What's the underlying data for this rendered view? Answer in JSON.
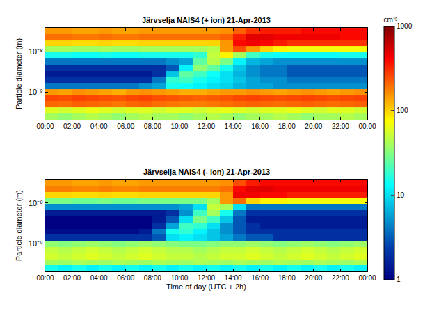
{
  "chart_data": [
    {
      "type": "heatmap",
      "title": "Järvselja NAIS4 (+ ion) 21-Apr-2013",
      "ylabel": "Particle diameter (m)",
      "log": "y",
      "x": [
        0.5,
        1.5,
        2.5,
        3.5,
        4.5,
        5.5,
        6.5,
        7.5,
        8.5,
        9.5,
        10.5,
        11.5,
        12.5,
        13.5,
        14.5,
        15.5,
        16.5,
        17.5,
        18.5,
        19.5,
        20.5,
        21.5,
        22.5,
        23.5
      ],
      "xlim": [
        0,
        24
      ],
      "xticks": [
        {
          "value": 0,
          "label": "00:00"
        },
        {
          "value": 2,
          "label": "02:00"
        },
        {
          "value": 4,
          "label": "04:00"
        },
        {
          "value": 6,
          "label": "06:00"
        },
        {
          "value": 8,
          "label": "08:00"
        },
        {
          "value": 10,
          "label": "10:00"
        },
        {
          "value": 12,
          "label": "12:00"
        },
        {
          "value": 14,
          "label": "14:00"
        },
        {
          "value": 16,
          "label": "16:00"
        },
        {
          "value": 18,
          "label": "18:00"
        },
        {
          "value": 20,
          "label": "20:00"
        },
        {
          "value": 22,
          "label": "22:00"
        },
        {
          "value": 24,
          "label": "00:00"
        }
      ],
      "y_bins": [
        2.11e-10,
        2.99e-10,
        4.22e-10,
        5.96e-10,
        8.41e-10,
        1.19e-09,
        1.68e-09,
        2.37e-09,
        3.35e-09,
        4.73e-09,
        6.68e-09,
        9.44e-09,
        1.33e-08,
        1.88e-08,
        2.66e-08,
        3.76e-08
      ],
      "ylim": [
        2.11e-10,
        3.76e-08
      ],
      "yticks": [
        {
          "value": 1e-09,
          "label": "10⁻⁹"
        },
        {
          "value": 1e-08,
          "label": "10⁻⁸"
        }
      ],
      "z": [
        [
          40,
          35,
          40,
          45,
          40,
          35,
          40,
          45,
          40,
          40,
          35,
          40,
          45,
          40,
          35,
          40,
          40,
          45,
          40,
          35,
          40,
          40,
          45,
          40
        ],
        [
          60,
          55,
          60,
          65,
          60,
          55,
          60,
          60,
          55,
          60,
          60,
          55,
          60,
          65,
          60,
          55,
          60,
          60,
          65,
          60,
          55,
          60,
          60,
          55
        ],
        [
          210,
          200,
          220,
          210,
          200,
          190,
          210,
          220,
          200,
          190,
          180,
          180,
          190,
          200,
          210,
          220,
          210,
          200,
          210,
          220,
          210,
          200,
          210,
          220
        ],
        [
          260,
          250,
          270,
          260,
          250,
          240,
          260,
          270,
          250,
          240,
          230,
          220,
          230,
          240,
          260,
          270,
          260,
          250,
          260,
          270,
          260,
          250,
          260,
          270
        ],
        [
          150,
          140,
          160,
          150,
          140,
          130,
          150,
          160,
          150,
          140,
          130,
          130,
          140,
          150,
          150,
          160,
          150,
          140,
          150,
          160,
          150,
          140,
          150,
          160
        ],
        [
          4,
          4,
          4,
          4,
          4,
          4,
          4,
          5,
          6,
          15,
          14,
          12,
          10,
          9,
          7,
          6,
          6,
          5,
          5,
          5,
          5,
          5,
          5,
          5
        ],
        [
          2,
          2,
          2,
          2,
          2,
          2,
          2,
          2,
          4,
          18,
          20,
          15,
          12,
          10,
          8,
          6,
          5,
          5,
          4,
          4,
          4,
          4,
          4,
          4
        ],
        [
          1.5,
          1.5,
          1.5,
          1.5,
          1.5,
          1.5,
          1.5,
          1.5,
          2,
          8,
          25,
          20,
          14,
          10,
          7,
          5,
          4,
          4,
          3,
          3,
          3,
          3,
          3,
          3
        ],
        [
          2,
          2,
          2,
          2,
          2,
          2,
          2,
          2,
          2,
          3,
          12,
          35,
          25,
          15,
          8,
          5,
          4,
          4,
          3,
          3,
          3,
          3,
          3,
          3
        ],
        [
          4,
          4,
          4,
          4,
          4,
          4,
          4,
          4,
          4,
          5,
          6,
          25,
          45,
          30,
          12,
          7,
          6,
          5,
          5,
          5,
          5,
          5,
          5,
          5
        ],
        [
          15,
          15,
          14,
          14,
          15,
          14,
          14,
          15,
          15,
          15,
          15,
          18,
          50,
          80,
          40,
          20,
          15,
          14,
          14,
          14,
          14,
          14,
          15,
          15
        ],
        [
          40,
          40,
          38,
          38,
          40,
          38,
          38,
          40,
          40,
          40,
          40,
          40,
          45,
          150,
          250,
          150,
          100,
          80,
          70,
          70,
          70,
          70,
          70,
          70
        ],
        [
          100,
          100,
          95,
          95,
          100,
          95,
          95,
          100,
          100,
          100,
          100,
          100,
          100,
          150,
          400,
          450,
          400,
          350,
          300,
          300,
          300,
          300,
          300,
          300
        ],
        [
          200,
          200,
          190,
          190,
          200,
          190,
          190,
          200,
          200,
          200,
          200,
          200,
          200,
          220,
          350,
          500,
          500,
          450,
          450,
          450,
          450,
          450,
          400,
          400
        ],
        [
          150,
          150,
          140,
          140,
          150,
          140,
          140,
          150,
          150,
          150,
          150,
          150,
          150,
          160,
          220,
          300,
          350,
          350,
          350,
          400,
          400,
          400,
          400,
          400
        ]
      ],
      "colorbar": {
        "label": "cm⁻³",
        "range": [
          1,
          1000
        ],
        "ticks": [
          1,
          10,
          100,
          1000
        ],
        "log": true
      }
    },
    {
      "type": "heatmap",
      "title": "Järvselja NAIS4 (- ion) 21-Apr-2013",
      "ylabel": "Particle diameter (m)",
      "xlabel": "Time of day (UTC + 2h)",
      "log": "y",
      "x": [
        0.5,
        1.5,
        2.5,
        3.5,
        4.5,
        5.5,
        6.5,
        7.5,
        8.5,
        9.5,
        10.5,
        11.5,
        12.5,
        13.5,
        14.5,
        15.5,
        16.5,
        17.5,
        18.5,
        19.5,
        20.5,
        21.5,
        22.5,
        23.5
      ],
      "xlim": [
        0,
        24
      ],
      "xticks": [
        {
          "value": 0,
          "label": "00:00"
        },
        {
          "value": 2,
          "label": "02:00"
        },
        {
          "value": 4,
          "label": "04:00"
        },
        {
          "value": 6,
          "label": "06:00"
        },
        {
          "value": 8,
          "label": "08:00"
        },
        {
          "value": 10,
          "label": "10:00"
        },
        {
          "value": 12,
          "label": "12:00"
        },
        {
          "value": 14,
          "label": "14:00"
        },
        {
          "value": 16,
          "label": "16:00"
        },
        {
          "value": 18,
          "label": "18:00"
        },
        {
          "value": 20,
          "label": "20:00"
        },
        {
          "value": 22,
          "label": "22:00"
        },
        {
          "value": 24,
          "label": "00:00"
        }
      ],
      "y_bins": [
        2.11e-10,
        2.99e-10,
        4.22e-10,
        5.96e-10,
        8.41e-10,
        1.19e-09,
        1.68e-09,
        2.37e-09,
        3.35e-09,
        4.73e-09,
        6.68e-09,
        9.44e-09,
        1.33e-08,
        1.88e-08,
        2.66e-08,
        3.76e-08
      ],
      "ylim": [
        2.11e-10,
        3.76e-08
      ],
      "yticks": [
        {
          "value": 1e-09,
          "label": "10⁻⁹"
        },
        {
          "value": 1e-08,
          "label": "10⁻⁸"
        }
      ],
      "z": [
        [
          15,
          12,
          15,
          12,
          15,
          12,
          15,
          12,
          15,
          12,
          15,
          12,
          15,
          12,
          15,
          12,
          15,
          12,
          15,
          12,
          15,
          12,
          15,
          12
        ],
        [
          40,
          38,
          42,
          40,
          38,
          42,
          40,
          38,
          42,
          40,
          38,
          42,
          40,
          38,
          42,
          40,
          38,
          42,
          40,
          38,
          42,
          40,
          38,
          42
        ],
        [
          55,
          50,
          55,
          60,
          55,
          50,
          55,
          60,
          55,
          50,
          50,
          45,
          50,
          55,
          55,
          60,
          55,
          50,
          55,
          60,
          55,
          50,
          55,
          60
        ],
        [
          50,
          45,
          50,
          55,
          50,
          45,
          50,
          55,
          50,
          45,
          45,
          40,
          45,
          50,
          50,
          55,
          50,
          45,
          50,
          55,
          50,
          45,
          50,
          55
        ],
        [
          35,
          32,
          35,
          38,
          35,
          32,
          35,
          38,
          35,
          32,
          30,
          30,
          32,
          35,
          35,
          38,
          35,
          32,
          35,
          38,
          35,
          32,
          35,
          38
        ],
        [
          2,
          2,
          2,
          2,
          2,
          2,
          2,
          2,
          3,
          10,
          12,
          10,
          8,
          6,
          4,
          3,
          3,
          2,
          2,
          2,
          2,
          2,
          2,
          2
        ],
        [
          1.2,
          1.2,
          1.2,
          1.2,
          1.2,
          1.2,
          1.2,
          1.5,
          4,
          15,
          18,
          12,
          8,
          5,
          3,
          2,
          2,
          2,
          2,
          2,
          2,
          2,
          2,
          2
        ],
        [
          1,
          1,
          1,
          1,
          1,
          1,
          1,
          1,
          2,
          6,
          20,
          18,
          10,
          5,
          3,
          2,
          1.5,
          1.5,
          1.5,
          1.5,
          1.5,
          1.5,
          1.5,
          1.5
        ],
        [
          1,
          1,
          1,
          1,
          1,
          1,
          1,
          1,
          1.5,
          3,
          10,
          30,
          20,
          8,
          3,
          1.5,
          1.5,
          1.5,
          1.5,
          1.5,
          1.5,
          1.5,
          1.5,
          1.5
        ],
        [
          1.5,
          1.5,
          1.5,
          1.5,
          1.5,
          1.5,
          1.5,
          1.5,
          1.5,
          2,
          5,
          20,
          40,
          15,
          4,
          2,
          2,
          2,
          2,
          2,
          2,
          2,
          2,
          2
        ],
        [
          5,
          5,
          5,
          5,
          5,
          5,
          5,
          5,
          5,
          5,
          6,
          10,
          50,
          40,
          10,
          4,
          4,
          4,
          4,
          4,
          4,
          4,
          4,
          4
        ],
        [
          30,
          30,
          28,
          28,
          30,
          28,
          28,
          30,
          30,
          30,
          30,
          30,
          40,
          150,
          200,
          100,
          80,
          80,
          70,
          70,
          70,
          70,
          70,
          70
        ],
        [
          100,
          100,
          95,
          95,
          100,
          95,
          95,
          100,
          100,
          100,
          100,
          100,
          100,
          150,
          450,
          450,
          400,
          400,
          350,
          350,
          350,
          350,
          350,
          350
        ],
        [
          180,
          180,
          170,
          170,
          180,
          170,
          170,
          180,
          180,
          180,
          180,
          180,
          180,
          200,
          400,
          500,
          500,
          450,
          450,
          450,
          450,
          450,
          450,
          450
        ],
        [
          150,
          150,
          140,
          140,
          150,
          140,
          140,
          150,
          150,
          150,
          150,
          150,
          150,
          160,
          250,
          350,
          400,
          400,
          400,
          400,
          400,
          400,
          400,
          400
        ]
      ]
    }
  ]
}
